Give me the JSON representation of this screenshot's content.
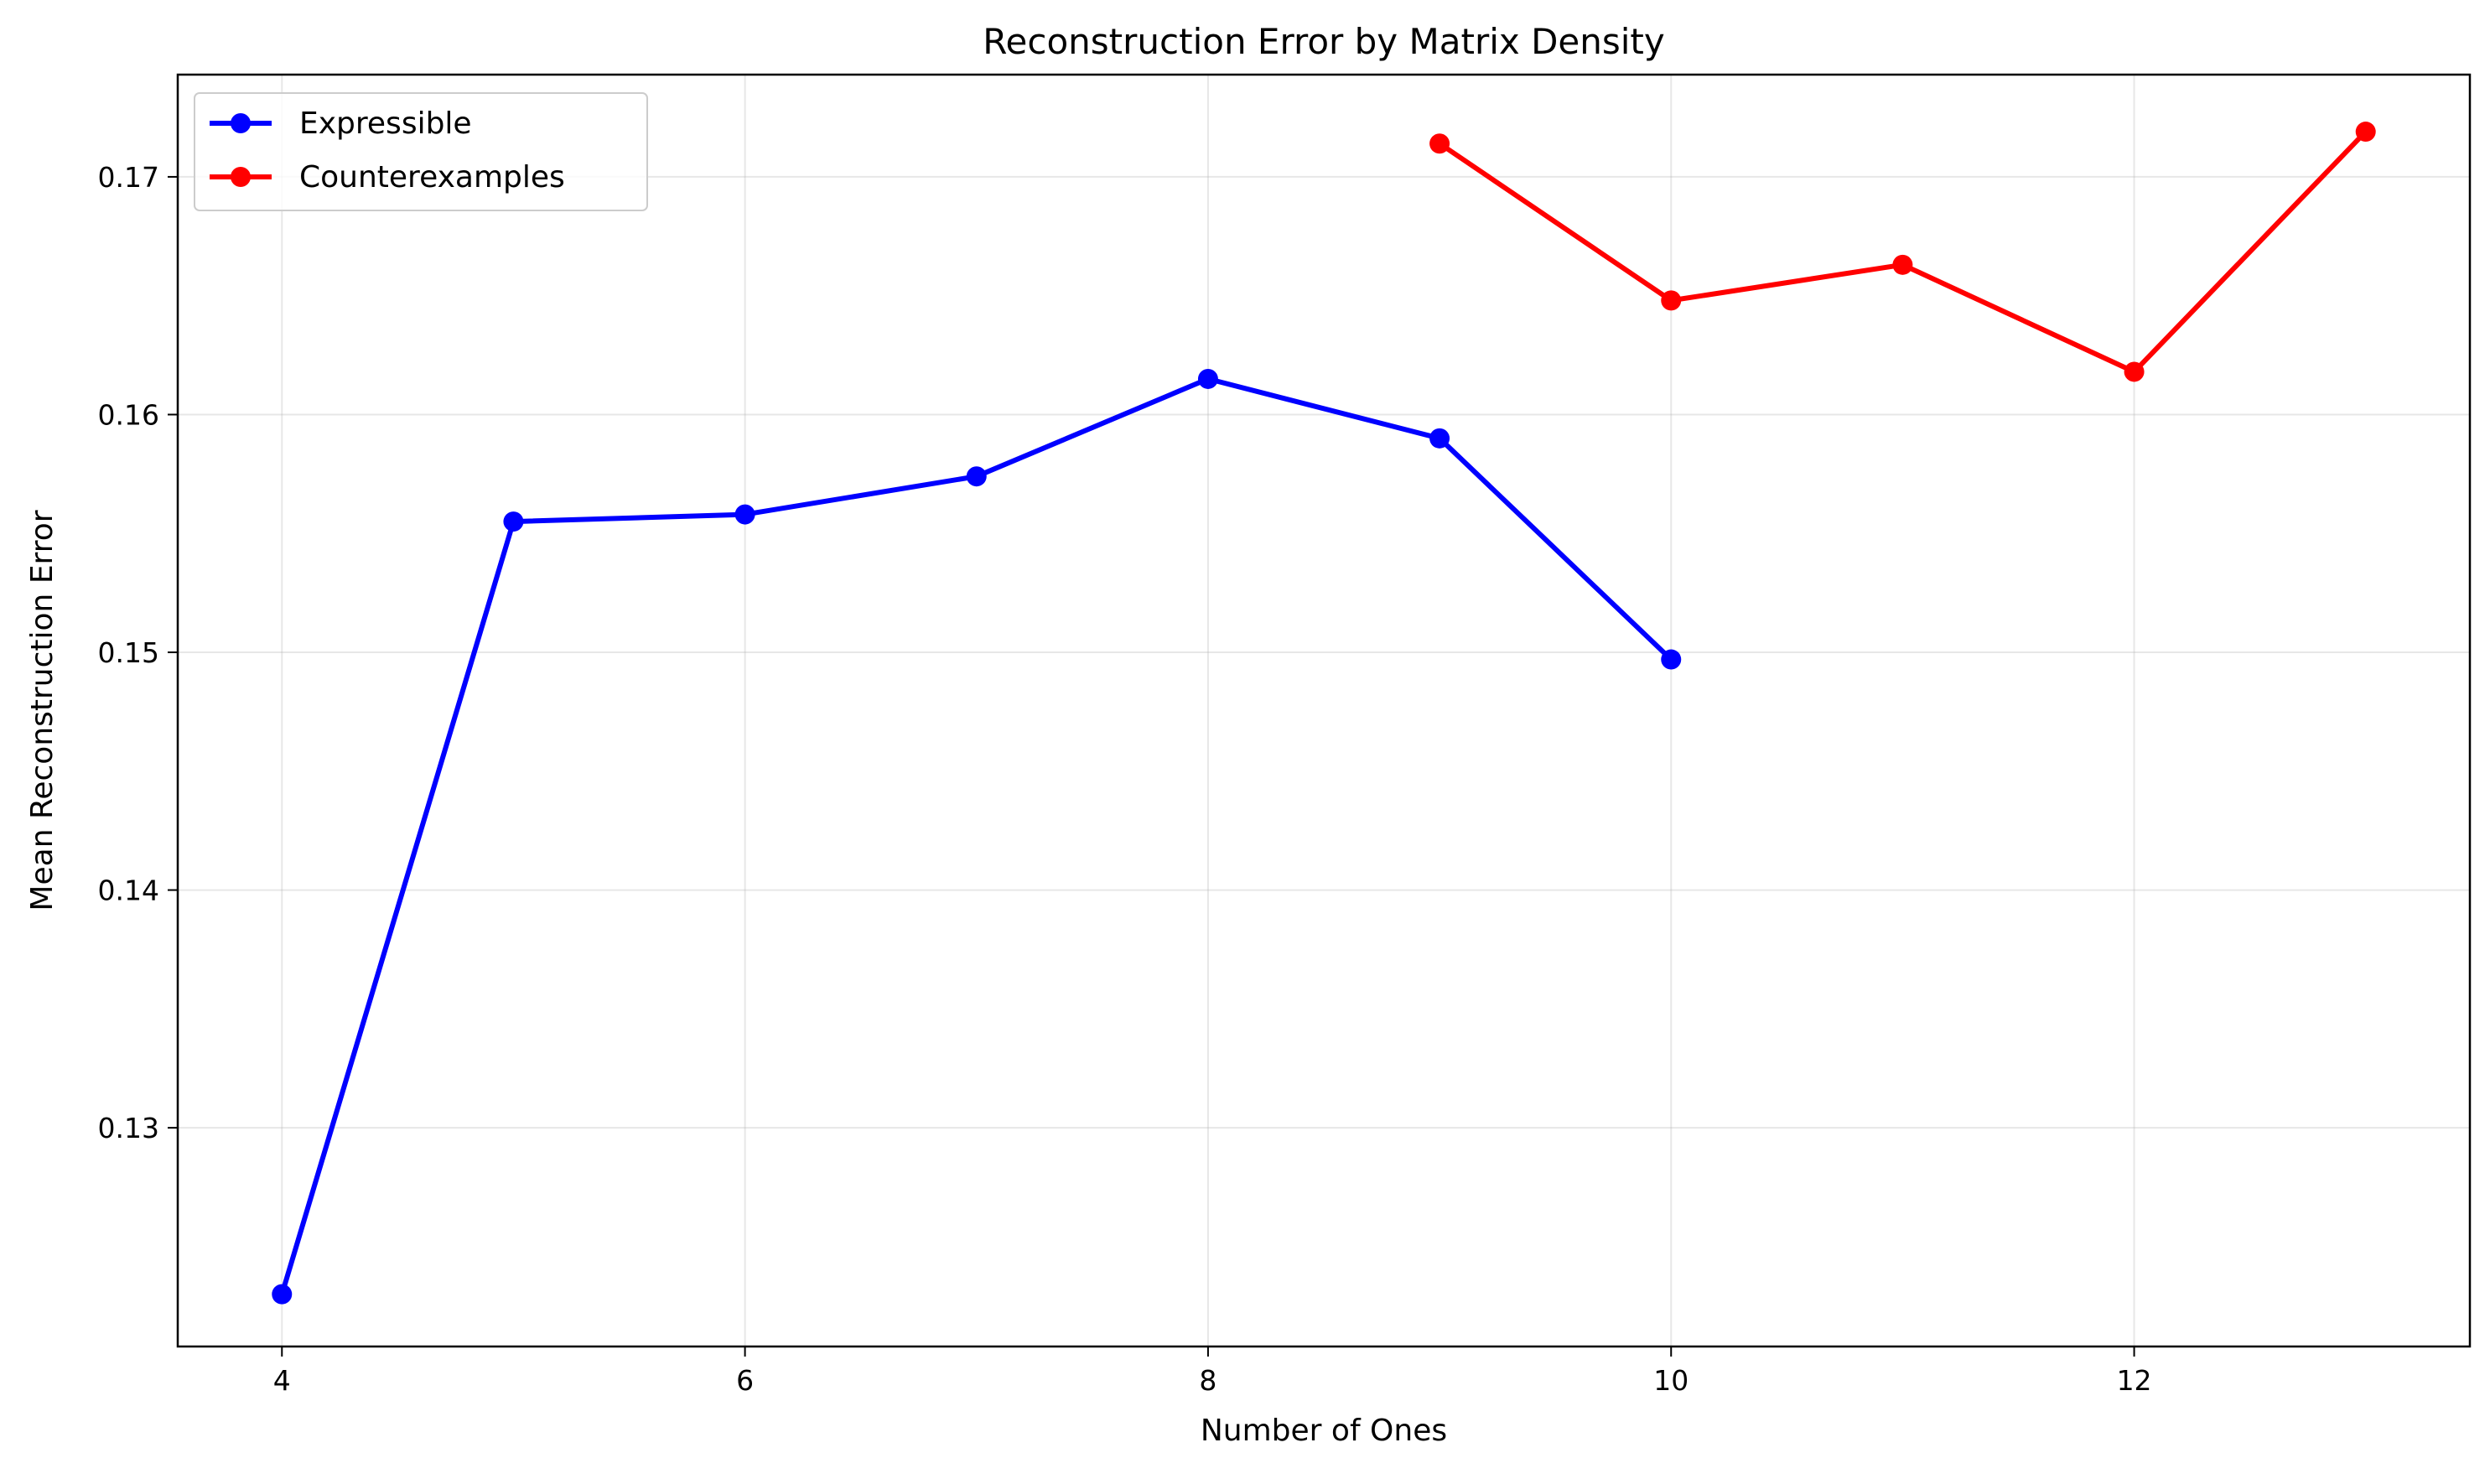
{
  "chart_data": {
    "type": "line",
    "title": "Reconstruction Error by Matrix Density",
    "xlabel": "Number of Ones",
    "ylabel": "Mean Reconstruction Error",
    "xlim": [
      3.55,
      13.45
    ],
    "ylim": [
      0.1208,
      0.1743
    ],
    "xticks": [
      4,
      6,
      8,
      10,
      12
    ],
    "xtick_labels": [
      "4",
      "6",
      "8",
      "10",
      "12"
    ],
    "yticks": [
      0.13,
      0.14,
      0.15,
      0.16,
      0.17
    ],
    "ytick_labels": [
      "0.13",
      "0.14",
      "0.15",
      "0.16",
      "0.17"
    ],
    "grid": true,
    "legend_position": "top-left",
    "series": [
      {
        "name": "Expressible",
        "color": "#0000ff",
        "x": [
          4,
          5,
          6,
          7,
          8,
          9,
          10
        ],
        "y": [
          0.123,
          0.1555,
          0.1558,
          0.1574,
          0.1615,
          0.159,
          0.1497
        ]
      },
      {
        "name": "Counterexamples",
        "color": "#ff0000",
        "x": [
          9,
          10,
          11,
          12,
          13
        ],
        "y": [
          0.1714,
          0.1648,
          0.1663,
          0.1618,
          0.1719
        ]
      }
    ]
  }
}
